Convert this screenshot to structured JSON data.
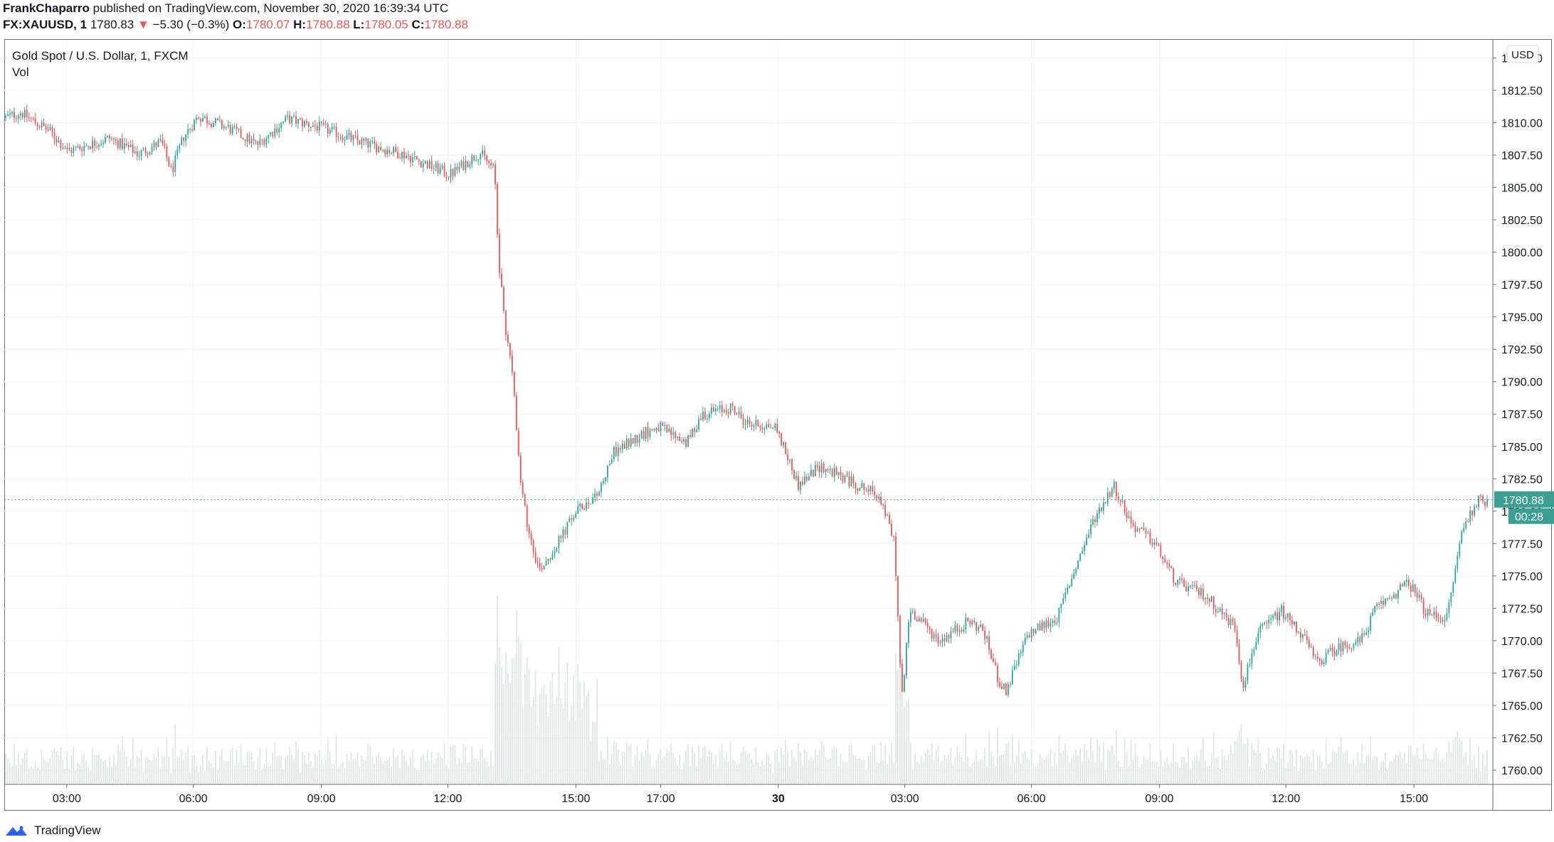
{
  "header": {
    "author": "FrankChaparro",
    "published_text": "published on TradingView.com, November 30, 2020 16:39:34 UTC",
    "symbol": "FX:XAUUSD, 1",
    "last": "1780.83",
    "change_arrow": "▼",
    "change": "−5.30 (−0.3%)",
    "o_label": "O:",
    "o_value": "1780.07",
    "h_label": "H:",
    "h_value": "1780.88",
    "l_label": "L:",
    "l_value": "1780.05",
    "c_label": "C:",
    "c_value": "1780.88"
  },
  "legend": {
    "title": "Gold Spot / U.S. Dollar, 1, FXCM",
    "vol": "Vol"
  },
  "axis": {
    "currency": "USD",
    "last_price_label": "1780.88",
    "countdown_label": "00:28"
  },
  "footer": {
    "brand": "TradingView"
  },
  "colors": {
    "up": "#26a69a",
    "down": "#ef5350",
    "grid": "#f0f3fa",
    "volume": "#dfe5e2",
    "last_price": "#3c9f94",
    "axis_text": "#131722"
  },
  "chart_data": {
    "type": "candlestick",
    "title": "Gold Spot / U.S. Dollar, 1, FXCM",
    "ylabel": "USD",
    "ylim": [
      1758.9,
      1816.4
    ],
    "y_ticks": [
      1815.0,
      1812.5,
      1810.0,
      1807.5,
      1805.0,
      1802.5,
      1800.0,
      1797.5,
      1795.0,
      1792.5,
      1790.0,
      1787.5,
      1785.0,
      1782.5,
      1780.0,
      1777.5,
      1775.0,
      1772.5,
      1770.0,
      1767.5,
      1765.0,
      1762.5,
      1760.0
    ],
    "x_ticks": [
      "03:00",
      "06:00",
      "09:00",
      "12:00",
      "15:00",
      "17:00",
      "30",
      "03:00",
      "06:00",
      "09:00",
      "12:00",
      "15:00"
    ],
    "x_tick_fractions": [
      0.042,
      0.127,
      0.213,
      0.298,
      0.384,
      0.441,
      0.52,
      0.605,
      0.69,
      0.776,
      0.861,
      0.947
    ],
    "price_path": [
      [
        0.0,
        1810.4
      ],
      [
        0.01,
        1810.8
      ],
      [
        0.03,
        1809.3
      ],
      [
        0.042,
        1807.8
      ],
      [
        0.07,
        1808.8
      ],
      [
        0.09,
        1807.6
      ],
      [
        0.105,
        1808.5
      ],
      [
        0.112,
        1806.2
      ],
      [
        0.12,
        1808.9
      ],
      [
        0.13,
        1810.5
      ],
      [
        0.15,
        1809.6
      ],
      [
        0.17,
        1808.3
      ],
      [
        0.19,
        1810.3
      ],
      [
        0.213,
        1809.6
      ],
      [
        0.24,
        1808.5
      ],
      [
        0.27,
        1807.5
      ],
      [
        0.3,
        1806.0
      ],
      [
        0.32,
        1807.7
      ],
      [
        0.33,
        1806.3
      ],
      [
        0.333,
        1799.0
      ],
      [
        0.337,
        1794.5
      ],
      [
        0.343,
        1790.0
      ],
      [
        0.347,
        1782.5
      ],
      [
        0.352,
        1779.0
      ],
      [
        0.36,
        1775.5
      ],
      [
        0.37,
        1777.0
      ],
      [
        0.384,
        1779.8
      ],
      [
        0.4,
        1781.5
      ],
      [
        0.41,
        1784.5
      ],
      [
        0.43,
        1786.0
      ],
      [
        0.441,
        1786.5
      ],
      [
        0.46,
        1785.3
      ],
      [
        0.47,
        1787.5
      ],
      [
        0.49,
        1788.0
      ],
      [
        0.5,
        1786.8
      ],
      [
        0.52,
        1786.5
      ],
      [
        0.535,
        1782.0
      ],
      [
        0.55,
        1783.5
      ],
      [
        0.57,
        1782.3
      ],
      [
        0.59,
        1781.2
      ],
      [
        0.6,
        1777.5
      ],
      [
        0.605,
        1765.5
      ],
      [
        0.61,
        1772.5
      ],
      [
        0.63,
        1770.0
      ],
      [
        0.65,
        1771.5
      ],
      [
        0.66,
        1770.8
      ],
      [
        0.67,
        1767.0
      ],
      [
        0.675,
        1766.0
      ],
      [
        0.69,
        1770.5
      ],
      [
        0.71,
        1771.8
      ],
      [
        0.72,
        1775.0
      ],
      [
        0.735,
        1779.5
      ],
      [
        0.748,
        1782.0
      ],
      [
        0.76,
        1779.0
      ],
      [
        0.776,
        1777.5
      ],
      [
        0.79,
        1774.5
      ],
      [
        0.81,
        1773.5
      ],
      [
        0.83,
        1771.0
      ],
      [
        0.835,
        1766.5
      ],
      [
        0.845,
        1770.5
      ],
      [
        0.861,
        1772.3
      ],
      [
        0.875,
        1770.5
      ],
      [
        0.885,
        1768.3
      ],
      [
        0.9,
        1769.5
      ],
      [
        0.915,
        1770.0
      ],
      [
        0.925,
        1772.5
      ],
      [
        0.947,
        1774.5
      ],
      [
        0.96,
        1772.0
      ],
      [
        0.973,
        1771.8
      ],
      [
        0.983,
        1778.5
      ],
      [
        0.993,
        1780.8
      ]
    ],
    "last_price": 1780.88
  }
}
